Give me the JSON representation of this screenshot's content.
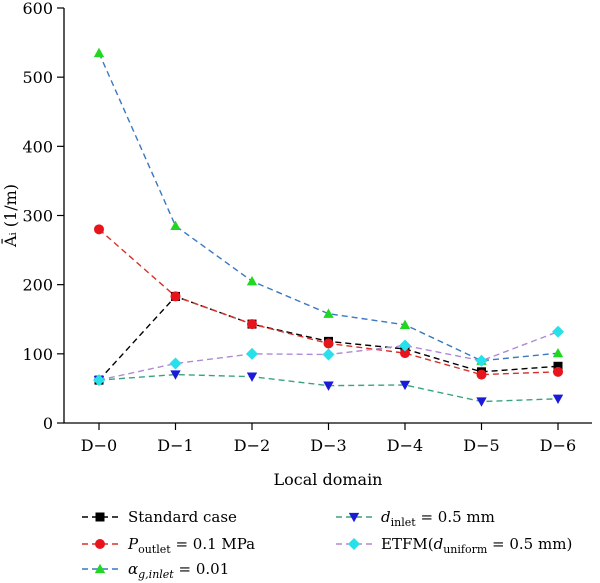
{
  "chart_data": {
    "type": "line",
    "categories": [
      "D−0",
      "D−1",
      "D−2",
      "D−3",
      "D−4",
      "D−5",
      "D−6"
    ],
    "xlabel": "Local domain",
    "ylabel": "Āᵢ (1/m)",
    "ylim": [
      0,
      600
    ],
    "yticks": [
      0,
      100,
      200,
      300,
      400,
      500,
      600
    ],
    "grid": false,
    "legend_position": "bottom",
    "series": [
      {
        "name": "Standard case",
        "marker": "square",
        "color": "#000000",
        "line_color": "#000000",
        "values": [
          62,
          183,
          143,
          118,
          107,
          74,
          82
        ]
      },
      {
        "name": "P_outlet = 0.1 MPa",
        "marker": "circle",
        "color": "#e8141c",
        "line_color": "#d9312a",
        "values": [
          280,
          183,
          143,
          115,
          101,
          70,
          74
        ]
      },
      {
        "name": "α_g,inlet = 0.01",
        "marker": "triangle-up",
        "color": "#1fd81f",
        "line_color": "#3a78c0",
        "values": [
          535,
          285,
          205,
          158,
          142,
          90,
          101
        ]
      },
      {
        "name": "d_inlet = 0.5 mm",
        "marker": "triangle-down",
        "color": "#1a1ad8",
        "line_color": "#3aa37e",
        "values": [
          62,
          70,
          67,
          54,
          55,
          31,
          35
        ]
      },
      {
        "name": "ETFM(d_uniform = 0.5 mm)",
        "marker": "diamond",
        "color": "#27e0ea",
        "line_color": "#b08ad4",
        "values": [
          62,
          86,
          100,
          99,
          112,
          90,
          132
        ]
      }
    ],
    "legend_text": {
      "s0": "Standard case",
      "s1_main": "P",
      "s1_sub": "outlet",
      "s1_tail": " = 0.1 MPa",
      "s2_main": "α",
      "s2_sub": "g,inlet",
      "s2_tail": " = 0.01",
      "s3_main": "d",
      "s3_sub": "inlet",
      "s3_tail": " = 0.5 mm",
      "s4_head": "ETFM(",
      "s4_main": "d",
      "s4_sub": "uniform",
      "s4_tail": " = 0.5 mm)"
    }
  }
}
